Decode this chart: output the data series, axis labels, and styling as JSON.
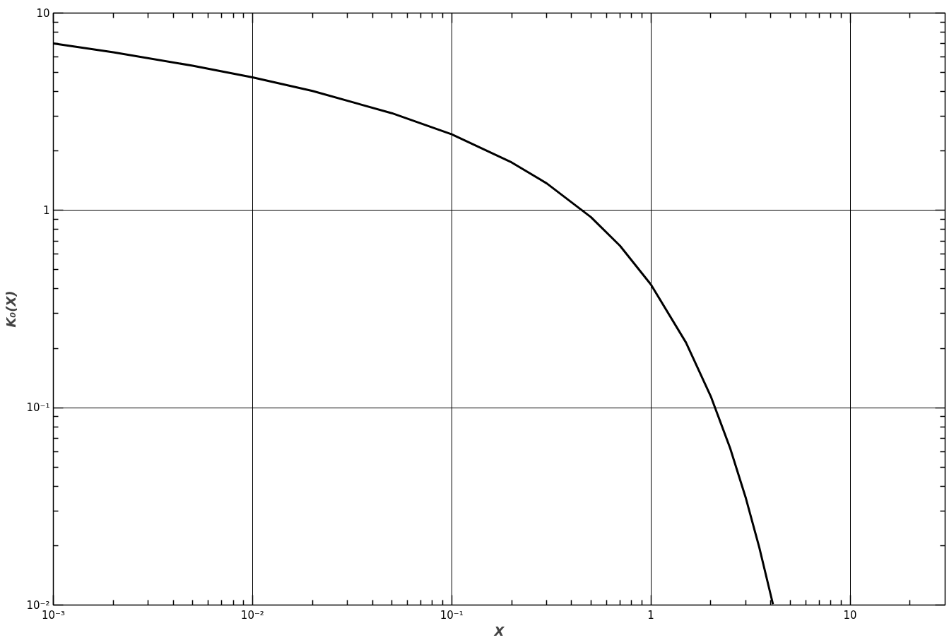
{
  "chart_data": {
    "type": "line",
    "xlabel": "X",
    "ylabel": "K₀(X)",
    "log": "xy",
    "grid": true,
    "marker": "none",
    "line_style": "solid",
    "x": [
      0.001,
      0.002,
      0.005,
      0.01,
      0.02,
      0.05,
      0.1,
      0.2,
      0.3,
      0.5,
      0.7,
      1,
      1.5,
      2,
      2.5,
      3,
      3.5,
      4,
      4.1
    ],
    "series": [
      {
        "color": "#000000",
        "values": [
          7.02,
          6.33,
          5.41,
          4.72,
          4.03,
          3.11,
          2.43,
          1.75,
          1.37,
          0.924,
          0.661,
          0.421,
          0.214,
          0.114,
          0.0623,
          0.0347,
          0.0196,
          0.0112,
          0.0101
        ]
      }
    ],
    "xlim": [
      0.001,
      30
    ],
    "ylim": [
      0.01,
      10
    ],
    "xticks": [
      {
        "value": 0.001,
        "label": "10⁻³"
      },
      {
        "value": 0.002,
        "label": null
      },
      {
        "value": 0.003,
        "label": null
      },
      {
        "value": 0.004,
        "label": null
      },
      {
        "value": 0.005,
        "label": null
      },
      {
        "value": 0.006,
        "label": null
      },
      {
        "value": 0.007,
        "label": null
      },
      {
        "value": 0.008,
        "label": null
      },
      {
        "value": 0.009,
        "label": null
      },
      {
        "value": 0.01,
        "label": "10⁻²"
      },
      {
        "value": 0.02,
        "label": null
      },
      {
        "value": 0.03,
        "label": null
      },
      {
        "value": 0.04,
        "label": null
      },
      {
        "value": 0.05,
        "label": null
      },
      {
        "value": 0.06,
        "label": null
      },
      {
        "value": 0.07,
        "label": null
      },
      {
        "value": 0.08,
        "label": null
      },
      {
        "value": 0.09,
        "label": null
      },
      {
        "value": 0.1,
        "label": "10⁻¹"
      },
      {
        "value": 0.2,
        "label": null
      },
      {
        "value": 0.3,
        "label": null
      },
      {
        "value": 0.4,
        "label": null
      },
      {
        "value": 0.5,
        "label": null
      },
      {
        "value": 0.6,
        "label": null
      },
      {
        "value": 0.7,
        "label": null
      },
      {
        "value": 0.8,
        "label": null
      },
      {
        "value": 0.9,
        "label": null
      },
      {
        "value": 1,
        "label": "1"
      },
      {
        "value": 2,
        "label": null
      },
      {
        "value": 3,
        "label": null
      },
      {
        "value": 4,
        "label": null
      },
      {
        "value": 5,
        "label": null
      },
      {
        "value": 6,
        "label": null
      },
      {
        "value": 7,
        "label": null
      },
      {
        "value": 8,
        "label": null
      },
      {
        "value": 9,
        "label": null
      },
      {
        "value": 10,
        "label": "10"
      },
      {
        "value": 20,
        "label": null
      }
    ],
    "yticks": [
      {
        "value": 0.01,
        "label": "10⁻²"
      },
      {
        "value": 0.02,
        "label": null
      },
      {
        "value": 0.03,
        "label": null
      },
      {
        "value": 0.04,
        "label": null
      },
      {
        "value": 0.05,
        "label": null
      },
      {
        "value": 0.06,
        "label": null
      },
      {
        "value": 0.07,
        "label": null
      },
      {
        "value": 0.08,
        "label": null
      },
      {
        "value": 0.09,
        "label": null
      },
      {
        "value": 0.1,
        "label": "10⁻¹"
      },
      {
        "value": 0.2,
        "label": null
      },
      {
        "value": 0.3,
        "label": null
      },
      {
        "value": 0.4,
        "label": null
      },
      {
        "value": 0.5,
        "label": null
      },
      {
        "value": 0.6,
        "label": null
      },
      {
        "value": 0.7,
        "label": null
      },
      {
        "value": 0.8,
        "label": null
      },
      {
        "value": 0.9,
        "label": null
      },
      {
        "value": 1,
        "label": "1"
      },
      {
        "value": 2,
        "label": null
      },
      {
        "value": 3,
        "label": null
      },
      {
        "value": 4,
        "label": null
      },
      {
        "value": 5,
        "label": null
      },
      {
        "value": 6,
        "label": null
      },
      {
        "value": 7,
        "label": null
      },
      {
        "value": 8,
        "label": null
      },
      {
        "value": 9,
        "label": null
      },
      {
        "value": 10,
        "label": "10"
      }
    ]
  }
}
